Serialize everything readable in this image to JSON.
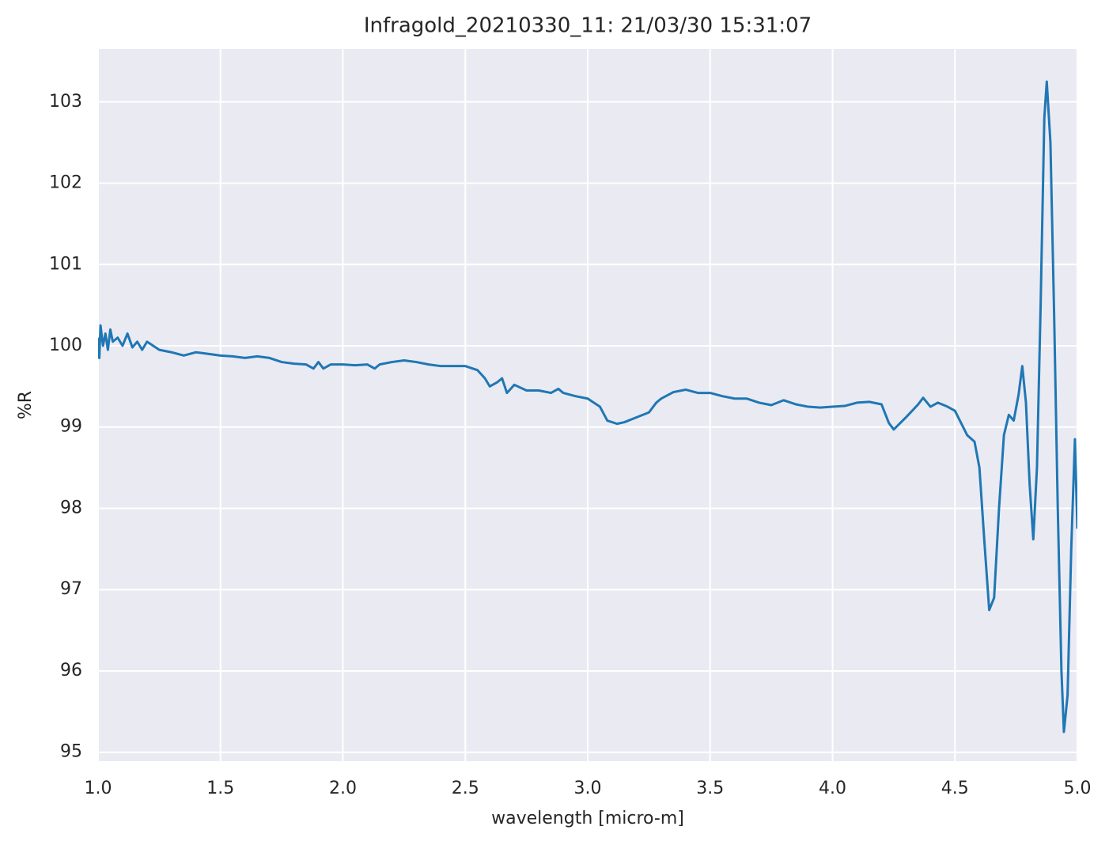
{
  "chart_data": {
    "type": "line",
    "title": "Infragold_20210330_11:  21/03/30 15:31:07",
    "xlabel": "wavelength [micro-m]",
    "ylabel": "%R",
    "xlim": [
      1.0,
      5.0
    ],
    "ylim": [
      94.89,
      103.65
    ],
    "xticks": [
      {
        "value": 1.0,
        "label": "1.0"
      },
      1.5,
      {
        "value": 2.0,
        "label": "2.0"
      },
      2.5,
      {
        "value": 3.0,
        "label": "3.0"
      },
      3.5,
      {
        "value": 4.0,
        "label": "4.0"
      },
      4.5,
      {
        "value": 5.0,
        "label": "5.0"
      }
    ],
    "yticks": [
      95,
      96,
      97,
      98,
      99,
      100,
      101,
      102,
      103
    ],
    "grid": true,
    "background": "#eaeaf2",
    "series": [
      {
        "color": "#1f77b4",
        "x": [
          1.0,
          1.005,
          1.01,
          1.02,
          1.03,
          1.04,
          1.05,
          1.06,
          1.08,
          1.1,
          1.12,
          1.14,
          1.16,
          1.18,
          1.2,
          1.25,
          1.3,
          1.35,
          1.4,
          1.45,
          1.5,
          1.55,
          1.6,
          1.65,
          1.7,
          1.75,
          1.8,
          1.85,
          1.88,
          1.9,
          1.92,
          1.95,
          2.0,
          2.05,
          2.1,
          2.13,
          2.15,
          2.2,
          2.25,
          2.3,
          2.35,
          2.4,
          2.45,
          2.5,
          2.55,
          2.58,
          2.6,
          2.63,
          2.65,
          2.67,
          2.7,
          2.75,
          2.8,
          2.85,
          2.88,
          2.9,
          2.95,
          3.0,
          3.05,
          3.08,
          3.12,
          3.15,
          3.2,
          3.25,
          3.28,
          3.3,
          3.35,
          3.4,
          3.45,
          3.5,
          3.55,
          3.6,
          3.65,
          3.7,
          3.75,
          3.8,
          3.85,
          3.9,
          3.95,
          4.0,
          4.05,
          4.1,
          4.15,
          4.2,
          4.23,
          4.25,
          4.3,
          4.35,
          4.37,
          4.4,
          4.43,
          4.47,
          4.5,
          4.53,
          4.55,
          4.58,
          4.6,
          4.62,
          4.64,
          4.66,
          4.68,
          4.7,
          4.72,
          4.74,
          4.76,
          4.775,
          4.79,
          4.805,
          4.82,
          4.835,
          4.85,
          4.865,
          4.875,
          4.89,
          4.905,
          4.92,
          4.935,
          4.945,
          4.96,
          4.975,
          4.99,
          5.0
        ],
        "values": [
          100.1,
          99.85,
          100.25,
          100.0,
          100.15,
          99.95,
          100.2,
          100.05,
          100.1,
          100.0,
          100.15,
          99.98,
          100.05,
          99.95,
          100.05,
          99.95,
          99.92,
          99.88,
          99.92,
          99.9,
          99.88,
          99.87,
          99.85,
          99.87,
          99.85,
          99.8,
          99.78,
          99.77,
          99.72,
          99.8,
          99.72,
          99.77,
          99.77,
          99.76,
          99.77,
          99.72,
          99.77,
          99.8,
          99.82,
          99.8,
          99.77,
          99.75,
          99.75,
          99.75,
          99.7,
          99.6,
          99.5,
          99.55,
          99.6,
          99.42,
          99.52,
          99.45,
          99.45,
          99.42,
          99.47,
          99.42,
          99.38,
          99.35,
          99.25,
          99.08,
          99.04,
          99.06,
          99.12,
          99.18,
          99.3,
          99.35,
          99.43,
          99.46,
          99.42,
          99.42,
          99.38,
          99.35,
          99.35,
          99.3,
          99.27,
          99.33,
          99.28,
          99.25,
          99.24,
          99.25,
          99.26,
          99.3,
          99.31,
          99.28,
          99.05,
          98.97,
          99.12,
          99.28,
          99.36,
          99.25,
          99.3,
          99.25,
          99.2,
          99.02,
          98.9,
          98.82,
          98.5,
          97.6,
          96.75,
          96.9,
          98.0,
          98.9,
          99.15,
          99.08,
          99.4,
          99.75,
          99.3,
          98.3,
          97.62,
          98.5,
          100.5,
          102.8,
          103.25,
          102.5,
          100.4,
          98.0,
          96.0,
          95.25,
          95.7,
          97.5,
          98.85,
          97.75
        ]
      }
    ]
  }
}
